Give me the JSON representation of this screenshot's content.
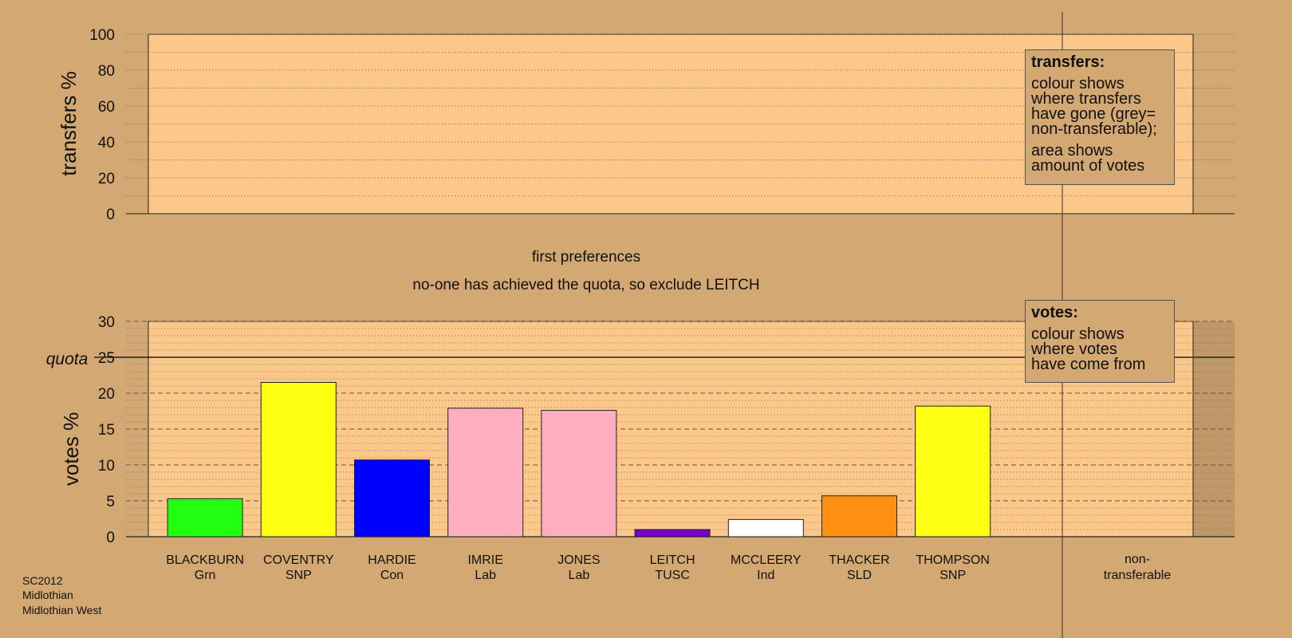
{
  "chart_data": [
    {
      "type": "area",
      "ylabel": "transfers %",
      "ylim": [
        0,
        100
      ],
      "yticks": [
        "0",
        "20",
        "40",
        "60",
        "80",
        "100"
      ],
      "grid": true,
      "series": []
    },
    {
      "type": "bar",
      "ylabel": "votes %",
      "ylim": [
        0,
        30
      ],
      "yticks": [
        "0",
        "5",
        "10",
        "15",
        "20",
        "25",
        "30"
      ],
      "quota": 25,
      "quota_label": "quota",
      "grid": true,
      "categories": [
        {
          "name": "BLACKBURN",
          "party": "Grn"
        },
        {
          "name": "COVENTRY",
          "party": "SNP"
        },
        {
          "name": "HARDIE",
          "party": "Con"
        },
        {
          "name": "IMRIE",
          "party": "Lab"
        },
        {
          "name": "JONES",
          "party": "Lab"
        },
        {
          "name": "LEITCH",
          "party": "TUSC"
        },
        {
          "name": "MCCLEERY",
          "party": "Ind"
        },
        {
          "name": "THACKER",
          "party": "SLD"
        },
        {
          "name": "THOMPSON",
          "party": "SNP"
        }
      ],
      "values": [
        5.3,
        21.5,
        10.7,
        17.9,
        17.6,
        1.0,
        2.4,
        5.7,
        18.2
      ],
      "colors": [
        "#22ff11",
        "#ffff11",
        "#0000ff",
        "#ffaec0",
        "#ffaec0",
        "#7700cc",
        "#ffffff",
        "#ff9011",
        "#ffff11"
      ],
      "nontransferable_label": [
        "non-",
        "transferable"
      ]
    }
  ],
  "captions": {
    "stage": "first preferences",
    "note": "no-one has achieved the quota, so exclude LEITCH"
  },
  "legend_transfers": {
    "title": "transfers:",
    "lines1": [
      "colour shows",
      "where transfers",
      "have gone (grey=",
      "non-transferable);"
    ],
    "lines2": [
      "area shows",
      "amount of votes"
    ]
  },
  "legend_votes": {
    "title": "votes:",
    "lines1": [
      "colour shows",
      "where votes",
      "have come from"
    ]
  },
  "footer": [
    "SC2012",
    "Midlothian",
    "Midlothian West"
  ],
  "colors": {
    "background": "#d4a872",
    "plot_fill": "#fcc88a"
  }
}
